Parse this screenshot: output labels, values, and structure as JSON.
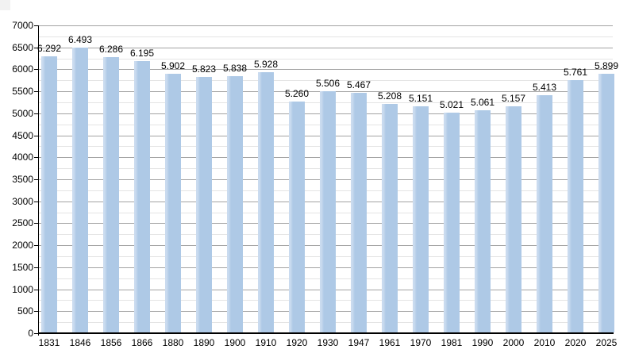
{
  "chart_data": {
    "type": "bar",
    "title": "",
    "xlabel": "",
    "ylabel": "",
    "categories": [
      "1831",
      "1846",
      "1856",
      "1866",
      "1880",
      "1890",
      "1900",
      "1910",
      "1920",
      "1930",
      "1947",
      "1961",
      "1970",
      "1981",
      "1990",
      "2000",
      "2010",
      "2020",
      "2025"
    ],
    "values": [
      6292,
      6493,
      6286,
      6195,
      5902,
      5823,
      5838,
      5928,
      5260,
      5506,
      5467,
      5208,
      5151,
      5021,
      5061,
      5157,
      5413,
      5761,
      5899
    ],
    "value_labels": [
      "6.292",
      "6.493",
      "6.286",
      "6.195",
      "5.902",
      "5.823",
      "5.838",
      "5.928",
      "5.260",
      "5.506",
      "5.467",
      "5.208",
      "5.151",
      "5.021",
      "5.061",
      "5.157",
      "5.413",
      "5.761",
      "5.899"
    ],
    "ylim": [
      0,
      7000
    ],
    "y_major_step": 500,
    "y_minor_step": 250,
    "y_tick_labels": [
      "0",
      "500",
      "1000",
      "1500",
      "2000",
      "2500",
      "3000",
      "3500",
      "4000",
      "4500",
      "5000",
      "5500",
      "6000",
      "6500",
      "7000"
    ],
    "grid": true,
    "legend": "none",
    "colors": {
      "bar": "#aec9e6",
      "bar_highlight": "#cadbef",
      "grid_major": "#a3a3a3",
      "grid_minor": "#e4e4e4",
      "axis": "#000000",
      "text": "#000000",
      "background": "#ffffff",
      "corner_artifact": "#f2f2f2"
    }
  }
}
